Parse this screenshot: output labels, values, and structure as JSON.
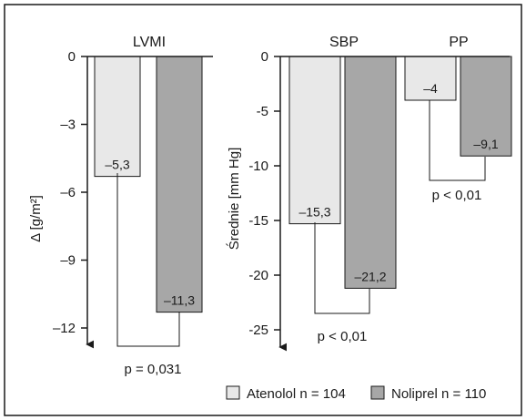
{
  "colors": {
    "atenolol": "#e8e8e8",
    "noliprel": "#a7a7a7",
    "outline": "#1a1a1a",
    "frame": "#1a1a1a",
    "background": "#ffffff"
  },
  "legend": {
    "atenolol": "Atenolol n = 104",
    "noliprel": "Noliprel n = 110",
    "position": "bottom-right"
  },
  "chart_data": [
    {
      "type": "bar",
      "title": "LVMI",
      "ylabel": "Δ [g/m²]",
      "ylim": [
        -12,
        0
      ],
      "yticks": [
        0,
        -3,
        -6,
        -9,
        -12
      ],
      "ytick_labels": [
        "0",
        "–3",
        "–6",
        "–9",
        "–12"
      ],
      "grid": false,
      "series": [
        {
          "name": "Atenolol n = 104",
          "values": [
            -5.3
          ],
          "labels": [
            "–5,3"
          ]
        },
        {
          "name": "Noliprel n = 110",
          "values": [
            -11.3
          ],
          "labels": [
            "–11,3"
          ]
        }
      ],
      "annotation": "p = 0,031"
    },
    {
      "type": "bar",
      "ylabel": "Średnie [mm Hg]",
      "ylim": [
        -25,
        0
      ],
      "yticks": [
        0,
        -5,
        -10,
        -15,
        -20,
        -25
      ],
      "ytick_labels": [
        "0",
        "-5",
        "-10",
        "-15",
        "-20",
        "-25"
      ],
      "grid": false,
      "categories": [
        "SBP",
        "PP"
      ],
      "series": [
        {
          "name": "Atenolol n = 104",
          "values": [
            -15.3,
            -4
          ],
          "labels": [
            "–15,3",
            "–4"
          ]
        },
        {
          "name": "Noliprel n = 110",
          "values": [
            -21.2,
            -9.1
          ],
          "labels": [
            "–21,2",
            "–9,1"
          ]
        }
      ],
      "annotations": [
        "p < 0,01",
        "p < 0,01"
      ]
    }
  ]
}
